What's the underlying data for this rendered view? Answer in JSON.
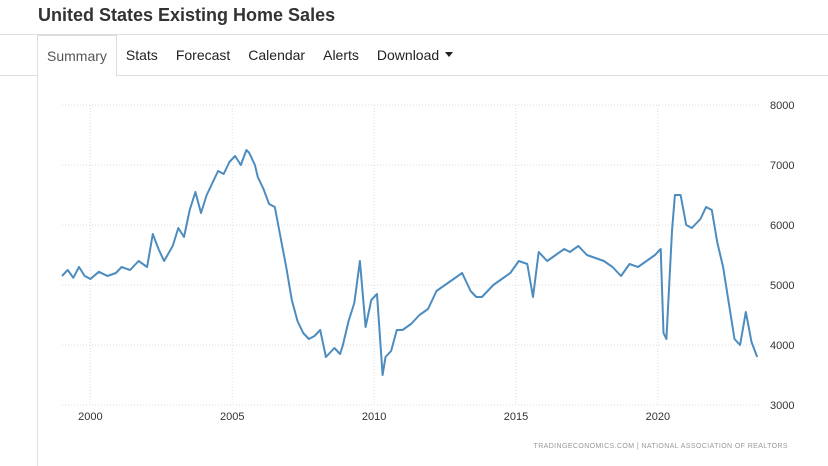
{
  "header": {
    "title": "United States Existing Home Sales"
  },
  "tabs": [
    {
      "label": "Summary",
      "active": true
    },
    {
      "label": "Stats"
    },
    {
      "label": "Forecast"
    },
    {
      "label": "Calendar"
    },
    {
      "label": "Alerts"
    },
    {
      "label": "Download",
      "dropdown": true
    }
  ],
  "chart_data": {
    "type": "line",
    "title": "",
    "xlabel": "",
    "ylabel": "",
    "xlim": [
      1999.0,
      2023.6
    ],
    "ylim": [
      3000,
      8000
    ],
    "x_ticks": [
      2000,
      2005,
      2010,
      2015,
      2020
    ],
    "y_ticks": [
      3000,
      4000,
      5000,
      6000,
      7000,
      8000
    ],
    "y_axis_side": "right",
    "grid": true,
    "line_color": "#4d8cbf",
    "source": "TRADINGECONOMICS.COM | NATIONAL ASSOCIATION OF REALTORS",
    "series": [
      {
        "name": "",
        "x": [
          1999.0,
          1999.2,
          1999.4,
          1999.6,
          1999.8,
          2000.0,
          2000.3,
          2000.6,
          2000.9,
          2001.1,
          2001.4,
          2001.7,
          2002.0,
          2002.2,
          2002.4,
          2002.6,
          2002.9,
          2003.1,
          2003.3,
          2003.5,
          2003.7,
          2003.9,
          2004.1,
          2004.3,
          2004.5,
          2004.7,
          2004.9,
          2005.1,
          2005.3,
          2005.5,
          2005.6,
          2005.8,
          2005.9,
          2006.1,
          2006.3,
          2006.5,
          2006.7,
          2006.9,
          2007.1,
          2007.3,
          2007.5,
          2007.7,
          2007.9,
          2008.1,
          2008.3,
          2008.6,
          2008.8,
          2008.9,
          2009.1,
          2009.3,
          2009.5,
          2009.7,
          2009.9,
          2010.1,
          2010.3,
          2010.4,
          2010.6,
          2010.8,
          2011.0,
          2011.3,
          2011.6,
          2011.9,
          2012.2,
          2012.5,
          2012.8,
          2013.1,
          2013.4,
          2013.6,
          2013.8,
          2014.0,
          2014.2,
          2014.5,
          2014.8,
          2015.1,
          2015.4,
          2015.6,
          2015.8,
          2016.1,
          2016.4,
          2016.7,
          2016.9,
          2017.2,
          2017.5,
          2017.8,
          2018.1,
          2018.4,
          2018.7,
          2019.0,
          2019.3,
          2019.6,
          2019.9,
          2020.1,
          2020.2,
          2020.3,
          2020.4,
          2020.5,
          2020.6,
          2020.8,
          2021.0,
          2021.2,
          2021.5,
          2021.7,
          2021.9,
          2022.1,
          2022.3,
          2022.5,
          2022.7,
          2022.9,
          2023.1,
          2023.2,
          2023.3,
          2023.5
        ],
        "values": [
          5150,
          5250,
          5120,
          5300,
          5150,
          5100,
          5220,
          5150,
          5200,
          5300,
          5250,
          5400,
          5300,
          5850,
          5600,
          5400,
          5650,
          5950,
          5800,
          6250,
          6550,
          6200,
          6500,
          6700,
          6900,
          6850,
          7050,
          7150,
          7000,
          7250,
          7200,
          7000,
          6800,
          6600,
          6350,
          6300,
          5800,
          5300,
          4750,
          4400,
          4200,
          4100,
          4150,
          4250,
          3800,
          3950,
          3850,
          4000,
          4400,
          4700,
          5400,
          4300,
          4750,
          4850,
          3500,
          3800,
          3900,
          4250,
          4250,
          4350,
          4500,
          4600,
          4900,
          5000,
          5100,
          5200,
          4900,
          4800,
          4800,
          4900,
          5000,
          5100,
          5200,
          5400,
          5350,
          4800,
          5550,
          5400,
          5500,
          5600,
          5550,
          5650,
          5500,
          5450,
          5400,
          5300,
          5150,
          5350,
          5300,
          5400,
          5500,
          5600,
          4200,
          4100,
          5000,
          5900,
          6500,
          6500,
          6000,
          5950,
          6100,
          6300,
          6250,
          5700,
          5300,
          4700,
          4100,
          4000,
          4550,
          4300,
          4050,
          3800
        ]
      }
    ]
  }
}
